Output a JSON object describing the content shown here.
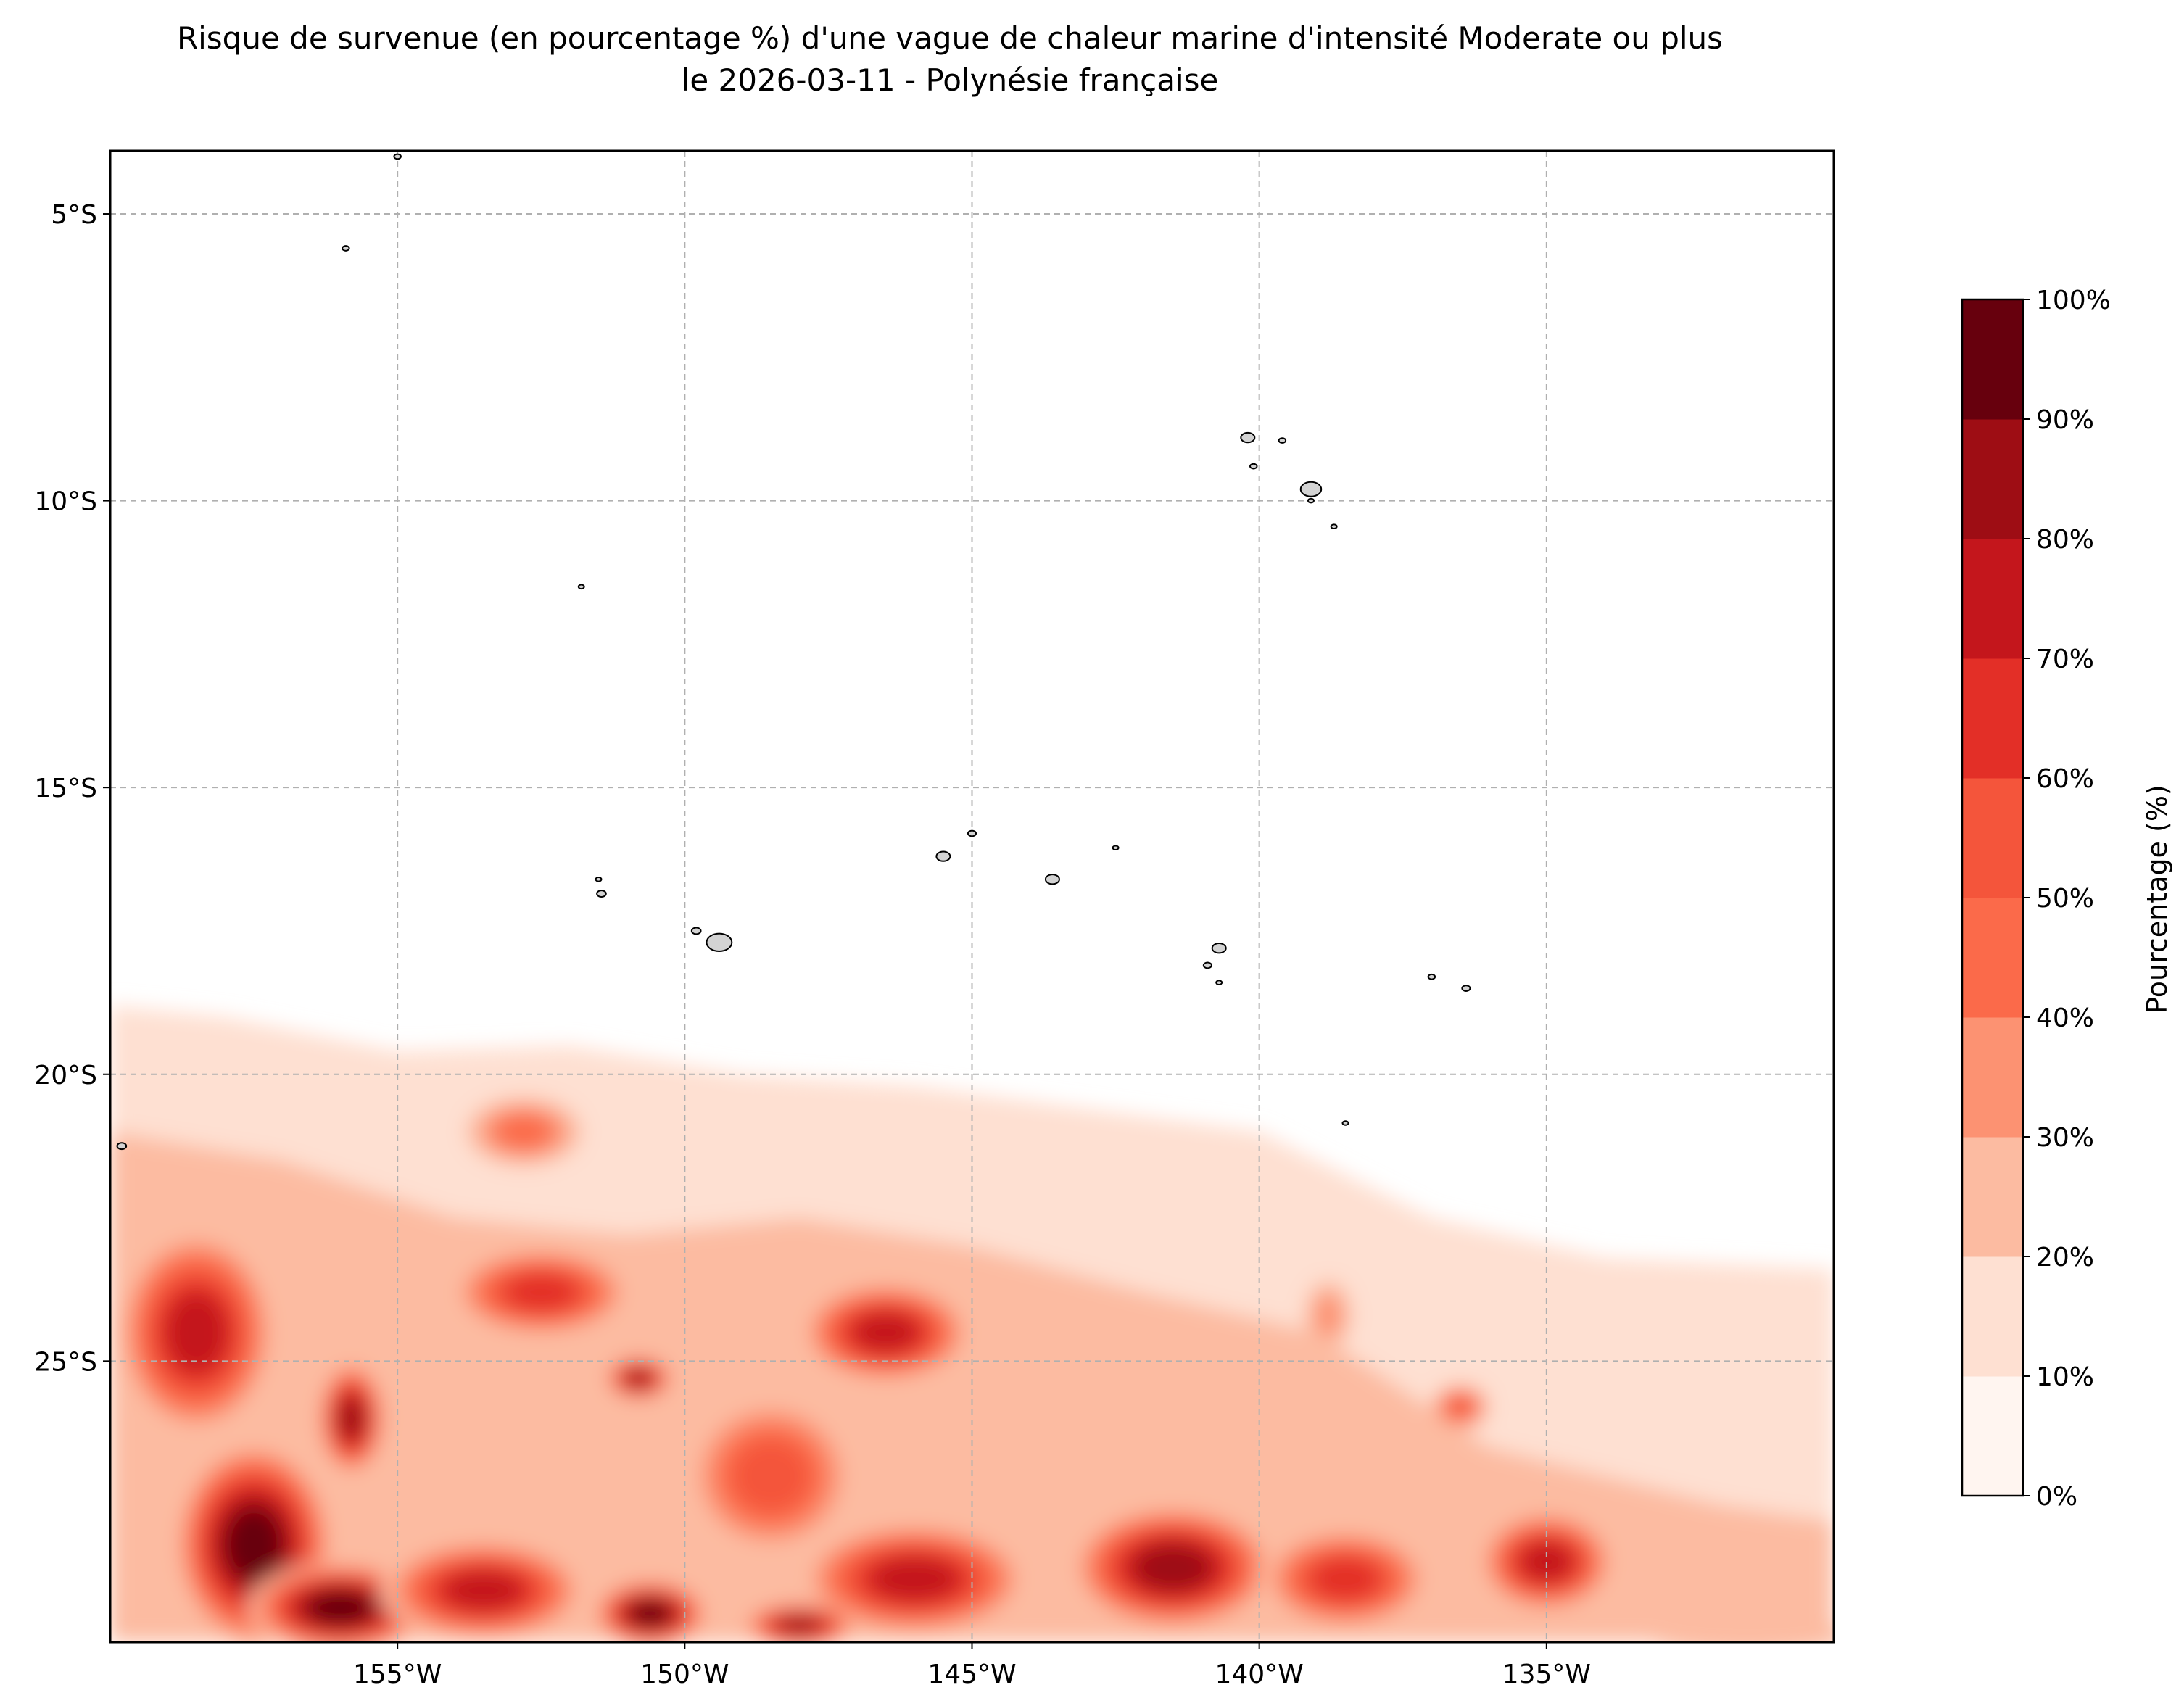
{
  "title": {
    "line1": "Risque de survenue (en pourcentage %) d'une vague de chaleur marine d'intensité Moderate ou plus",
    "line2": "le 2026-03-11 - Polynésie française"
  },
  "map": {
    "lon_range": [
      -160,
      -130
    ],
    "lat_range": [
      -29.9,
      -3.9
    ],
    "x_ticks": [
      {
        "lon": -155,
        "label": "155°W"
      },
      {
        "lon": -150,
        "label": "150°W"
      },
      {
        "lon": -145,
        "label": "145°W"
      },
      {
        "lon": -140,
        "label": "140°W"
      },
      {
        "lon": -135,
        "label": "135°W"
      }
    ],
    "y_ticks": [
      {
        "lat": -5,
        "label": "5°S"
      },
      {
        "lat": -10,
        "label": "10°S"
      },
      {
        "lat": -15,
        "label": "15°S"
      },
      {
        "lat": -20,
        "label": "20°S"
      },
      {
        "lat": -25,
        "label": "25°S"
      }
    ],
    "gridlines": true,
    "land_color": "#d3d3d3",
    "field_note_colors": "Reds",
    "risk_blobs": [
      {
        "lon": -158.5,
        "lat": -24.5,
        "rx": 1.4,
        "ry": 1.8,
        "level": 8
      },
      {
        "lon": -157.5,
        "lat": -28.2,
        "rx": 1.4,
        "ry": 1.8,
        "level": 10
      },
      {
        "lon": -156.0,
        "lat": -29.3,
        "rx": 1.6,
        "ry": 0.8,
        "level": 10
      },
      {
        "lon": -155.8,
        "lat": -26.0,
        "rx": 0.6,
        "ry": 1.0,
        "level": 9
      },
      {
        "lon": -152.5,
        "lat": -23.8,
        "rx": 1.6,
        "ry": 0.8,
        "level": 7
      },
      {
        "lon": -152.8,
        "lat": -21.0,
        "rx": 1.0,
        "ry": 0.6,
        "level": 5
      },
      {
        "lon": -150.8,
        "lat": -25.3,
        "rx": 0.6,
        "ry": 0.4,
        "level": 9
      },
      {
        "lon": -150.6,
        "lat": -29.4,
        "rx": 1.0,
        "ry": 0.6,
        "level": 10
      },
      {
        "lon": -153.5,
        "lat": -29.0,
        "rx": 1.8,
        "ry": 0.9,
        "level": 8
      },
      {
        "lon": -146.5,
        "lat": -24.5,
        "rx": 1.5,
        "ry": 0.9,
        "level": 8
      },
      {
        "lon": -148.5,
        "lat": -27.0,
        "rx": 1.5,
        "ry": 1.4,
        "level": 6
      },
      {
        "lon": -146.0,
        "lat": -28.8,
        "rx": 2.0,
        "ry": 1.0,
        "level": 8
      },
      {
        "lon": -148.0,
        "lat": -29.6,
        "rx": 1.0,
        "ry": 0.4,
        "level": 9
      },
      {
        "lon": -141.5,
        "lat": -28.6,
        "rx": 1.8,
        "ry": 1.1,
        "level": 9
      },
      {
        "lon": -138.5,
        "lat": -28.8,
        "rx": 1.5,
        "ry": 0.9,
        "level": 7
      },
      {
        "lon": -135.0,
        "lat": -28.5,
        "rx": 1.2,
        "ry": 0.9,
        "level": 8
      },
      {
        "lon": -136.5,
        "lat": -25.8,
        "rx": 0.5,
        "ry": 0.4,
        "level": 6
      },
      {
        "lon": -138.8,
        "lat": -24.2,
        "rx": 0.4,
        "ry": 0.6,
        "level": 4
      },
      {
        "lon": -131.5,
        "lat": -28.4,
        "rx": 1.2,
        "ry": 0.4,
        "level": 3
      },
      {
        "lon": -131.5,
        "lat": -29.8,
        "rx": 1.8,
        "ry": 0.3,
        "level": 3
      }
    ],
    "islands": [
      {
        "lon": -155.0,
        "lat": -4.0,
        "r": 0.06
      },
      {
        "lon": -155.9,
        "lat": -5.6,
        "r": 0.06
      },
      {
        "lon": -151.8,
        "lat": -11.5,
        "r": 0.05
      },
      {
        "lon": -140.2,
        "lat": -8.9,
        "r": 0.12
      },
      {
        "lon": -139.6,
        "lat": -8.95,
        "r": 0.06
      },
      {
        "lon": -140.1,
        "lat": -9.4,
        "r": 0.06
      },
      {
        "lon": -139.1,
        "lat": -9.8,
        "r": 0.18
      },
      {
        "lon": -139.1,
        "lat": -10.0,
        "r": 0.05
      },
      {
        "lon": -138.7,
        "lat": -10.45,
        "r": 0.05
      },
      {
        "lon": -151.5,
        "lat": -16.6,
        "r": 0.05
      },
      {
        "lon": -151.45,
        "lat": -16.85,
        "r": 0.08
      },
      {
        "lon": -149.8,
        "lat": -17.5,
        "r": 0.08
      },
      {
        "lon": -149.4,
        "lat": -17.7,
        "r": 0.22
      },
      {
        "lon": -145.5,
        "lat": -16.2,
        "r": 0.12
      },
      {
        "lon": -145.0,
        "lat": -15.8,
        "r": 0.07
      },
      {
        "lon": -143.6,
        "lat": -16.6,
        "r": 0.12
      },
      {
        "lon": -142.5,
        "lat": -16.05,
        "r": 0.05
      },
      {
        "lon": -140.7,
        "lat": -17.8,
        "r": 0.12
      },
      {
        "lon": -140.9,
        "lat": -18.1,
        "r": 0.07
      },
      {
        "lon": -140.7,
        "lat": -18.4,
        "r": 0.05
      },
      {
        "lon": -137.0,
        "lat": -18.3,
        "r": 0.06
      },
      {
        "lon": -136.4,
        "lat": -18.5,
        "r": 0.07
      },
      {
        "lon": -138.5,
        "lat": -20.85,
        "r": 0.05
      },
      {
        "lon": -159.8,
        "lat": -21.25,
        "r": 0.08
      }
    ]
  },
  "colorbar": {
    "label": "Pourcentage (%)",
    "levels": [
      "0%",
      "10%",
      "20%",
      "30%",
      "40%",
      "50%",
      "60%",
      "70%",
      "80%",
      "90%",
      "100%"
    ],
    "colors": [
      "#fff5f0",
      "#fee0d2",
      "#fcbba1",
      "#fc9272",
      "#fb6a4a",
      "#f4553b",
      "#e32f27",
      "#c4161c",
      "#9e0d14",
      "#67000d"
    ]
  }
}
